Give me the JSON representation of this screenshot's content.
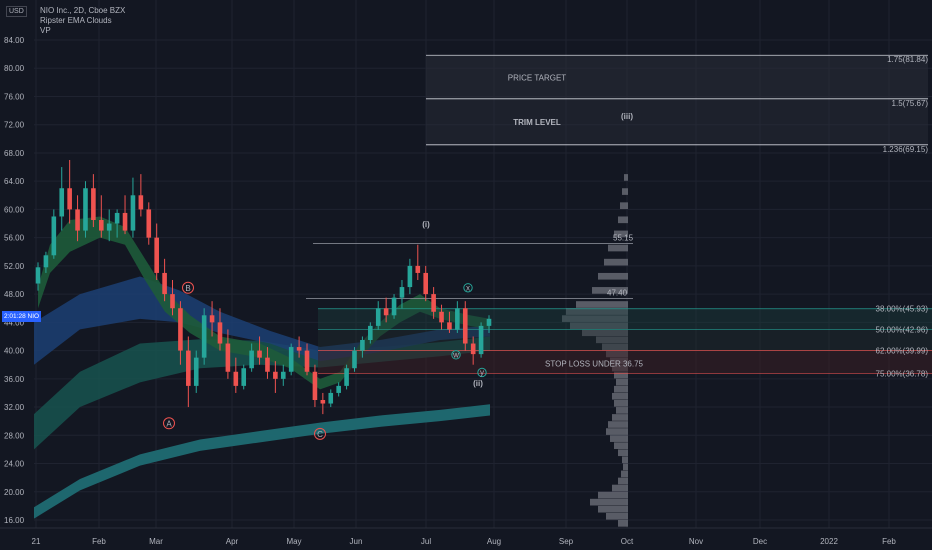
{
  "legend": {
    "title": "NIO Inc., 2D, Cboe BZX",
    "indicator_1": "Ripster EMA Clouds",
    "indicator_2": "VP"
  },
  "currency_badge": "USD",
  "price_tag": {
    "time": "2:01:28",
    "symbol": "NIO"
  },
  "colors": {
    "background": "#131722",
    "up": "#26a69a",
    "down": "#ef5350",
    "grid": "#1f2330",
    "axis_text": "#b2b5be",
    "cloud_green": "#1e5b3a",
    "cloud_blue": "#1c3f73",
    "cloud_teal": "#18544f",
    "long_ema": "#1f6b73",
    "stop_loss": "#ef5350",
    "price_target": "#26a69a",
    "trim_text": "#ffffff",
    "volume_profile": "#6b6e78"
  },
  "chart_data": {
    "type": "candlestick",
    "y_axis": {
      "ticks": [
        "84.00",
        "80.00",
        "76.00",
        "72.00",
        "68.00",
        "64.00",
        "60.00",
        "56.00",
        "52.00",
        "48.00",
        "44.00",
        "40.00",
        "36.00",
        "32.00",
        "28.00",
        "24.00",
        "20.00",
        "16.00"
      ],
      "range": [
        14.5,
        87.5
      ]
    },
    "x_axis": {
      "ticks": [
        "21",
        "Feb",
        "Mar",
        "Apr",
        "May",
        "Jun",
        "Jul",
        "Aug",
        "Sep",
        "Oct",
        "Nov",
        "Dec",
        "2022",
        "Feb"
      ]
    },
    "candles": [
      [
        49.5,
        52.5,
        48.5,
        51.8
      ],
      [
        51.8,
        54,
        51,
        53.5
      ],
      [
        53.5,
        60,
        53,
        59
      ],
      [
        59,
        66,
        57,
        63
      ],
      [
        63,
        67,
        58,
        60
      ],
      [
        60,
        62,
        55.5,
        57
      ],
      [
        57,
        64,
        56,
        63
      ],
      [
        63,
        65,
        57.5,
        58.5
      ],
      [
        58.5,
        62,
        56,
        57
      ],
      [
        57,
        60,
        55.5,
        58
      ],
      [
        58,
        60,
        56,
        59.5
      ],
      [
        59.5,
        62,
        56.5,
        57
      ],
      [
        57,
        64.5,
        56,
        62
      ],
      [
        62,
        65,
        59,
        60
      ],
      [
        60,
        61,
        55,
        56
      ],
      [
        56,
        58,
        50,
        51
      ],
      [
        51,
        53,
        47,
        48
      ],
      [
        48,
        50,
        45,
        46
      ],
      [
        46,
        47,
        38,
        40
      ],
      [
        40,
        42,
        32,
        35
      ],
      [
        35,
        40,
        34,
        39
      ],
      [
        39,
        46,
        38,
        45
      ],
      [
        45,
        47,
        42,
        44
      ],
      [
        44,
        46,
        40,
        41
      ],
      [
        41,
        43,
        36,
        37
      ],
      [
        37,
        39,
        34,
        35
      ],
      [
        35,
        38,
        34.5,
        37.5
      ],
      [
        37.5,
        41,
        37,
        40
      ],
      [
        40,
        42,
        38,
        39
      ],
      [
        39,
        40.5,
        36,
        37
      ],
      [
        37,
        38.5,
        34,
        36
      ],
      [
        36,
        38,
        35,
        37
      ],
      [
        37,
        41,
        36.5,
        40.5
      ],
      [
        40.5,
        42,
        39,
        40
      ],
      [
        40,
        41,
        36.5,
        37
      ],
      [
        37,
        38,
        32,
        33
      ],
      [
        33,
        34,
        31,
        32.5
      ],
      [
        32.5,
        34.5,
        32,
        34
      ],
      [
        34,
        35.5,
        33.5,
        35
      ],
      [
        35,
        38,
        34.5,
        37.5
      ],
      [
        37.5,
        40.5,
        37,
        40
      ],
      [
        40,
        42,
        39,
        41.5
      ],
      [
        41.5,
        44,
        41,
        43.5
      ],
      [
        43.5,
        47,
        43,
        46
      ],
      [
        46,
        47.5,
        44,
        45
      ],
      [
        45,
        48,
        44.5,
        47.5
      ],
      [
        47.5,
        50,
        46,
        49
      ],
      [
        49,
        53,
        48,
        52
      ],
      [
        52,
        55,
        50,
        51
      ],
      [
        51,
        52,
        47,
        48
      ],
      [
        48,
        49,
        44.5,
        45.5
      ],
      [
        45.5,
        46.5,
        43,
        44
      ],
      [
        44,
        45.5,
        42.5,
        43
      ],
      [
        43,
        47,
        42.5,
        46
      ],
      [
        46,
        47,
        40,
        41
      ],
      [
        41,
        42,
        38,
        39.5
      ],
      [
        39.5,
        44,
        39,
        43.5
      ],
      [
        43.5,
        45,
        42.5,
        44.5
      ]
    ],
    "fib_levels": [
      {
        "label": "1.75(81.84)",
        "price": 81.84
      },
      {
        "label": "1.5(75.67)",
        "price": 75.67
      },
      {
        "label": "1.236(69.15)",
        "price": 69.15
      },
      {
        "label": "38.00%(45.93)",
        "price": 45.93
      },
      {
        "label": "50.00%(42.96)",
        "price": 42.96
      },
      {
        "label": "62.00%(39.99)",
        "price": 39.99
      },
      {
        "label": "75.00%(36.78)",
        "price": 36.78
      }
    ],
    "horizontal_levels": [
      {
        "label": "55.15",
        "price": 55.15
      },
      {
        "label": "47.40",
        "price": 47.4
      }
    ],
    "zone_labels": {
      "price_target": "PRICE TARGET",
      "trim_level": "TRIM LEVEL",
      "stop_loss": "STOP LOSS UNDER 36.75"
    },
    "wave_labels": [
      {
        "text": "(i)",
        "price": 57.5
      },
      {
        "text": "(ii)",
        "price": 35.0
      },
      {
        "text": "(iii)",
        "price": 72.8
      }
    ],
    "circled_labels": [
      {
        "text": "A",
        "color": "#ef5350",
        "price": 29.7
      },
      {
        "text": "B",
        "color": "#ef5350",
        "price": 48.9
      },
      {
        "text": "C",
        "color": "#ef5350",
        "price": 28.2
      },
      {
        "text": "x",
        "color": "#26a69a",
        "price": 48.9
      },
      {
        "text": "w",
        "color": "#26a69a",
        "price": 39.4
      },
      {
        "text": "y",
        "color": "#26a69a",
        "price": 36.9
      }
    ]
  }
}
